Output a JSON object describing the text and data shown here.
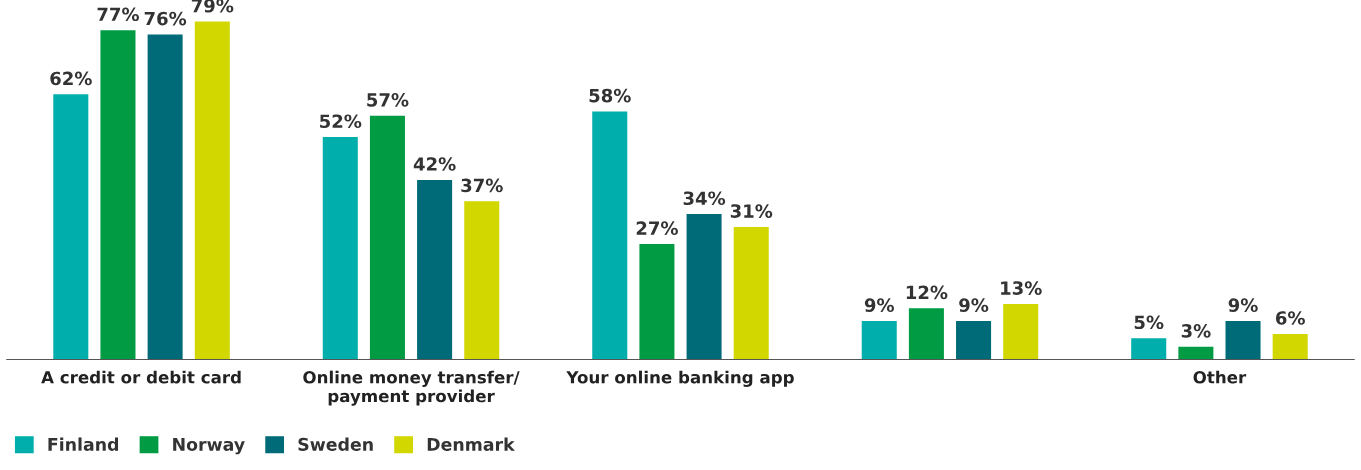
{
  "chart_data": {
    "type": "bar",
    "categories": [
      "A credit or debit card",
      "Online money transfer/\npayment provider",
      "Your online banking app",
      null,
      "Other"
    ],
    "series": [
      {
        "name": "Finland",
        "color": "#00aeab",
        "values": [
          62,
          52,
          58,
          9,
          5
        ],
        "value_labels": [
          "62%",
          "52%",
          "58%",
          "9%",
          "5%"
        ]
      },
      {
        "name": "Norway",
        "color": "#009b43",
        "values": [
          77,
          57,
          27,
          12,
          3
        ],
        "value_labels": [
          "77%",
          "57%",
          "27%",
          "12%",
          "3%"
        ]
      },
      {
        "name": "Sweden",
        "color": "#006b78",
        "values": [
          76,
          42,
          34,
          9,
          9
        ],
        "value_labels": [
          "76%",
          "42%",
          "34%",
          "9%",
          "9%"
        ]
      },
      {
        "name": "Denmark",
        "color": "#d2d700",
        "values": [
          79,
          37,
          31,
          13,
          6
        ],
        "value_labels": [
          "79%",
          "37%",
          "31%",
          "13%",
          "6%"
        ]
      }
    ],
    "legend": "bottom left",
    "tick_labels": "x"
  }
}
